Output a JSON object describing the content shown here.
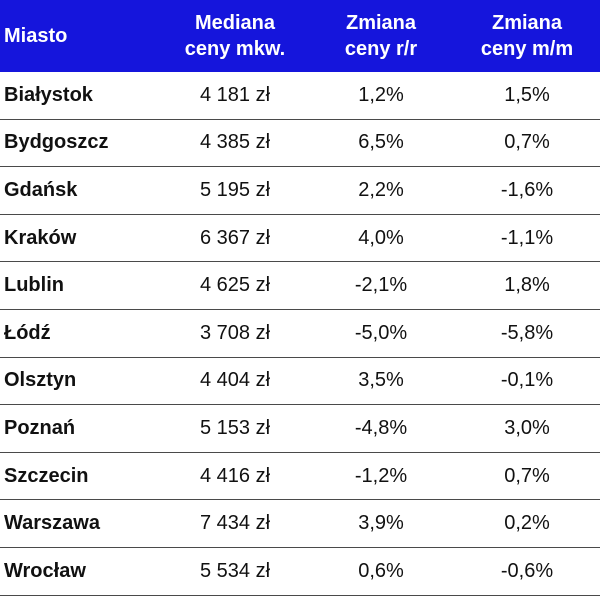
{
  "colors": {
    "header_background": "#1515dc",
    "header_text": "#ffffff",
    "row_divider": "#4a4a4a",
    "body_text": "#111111"
  },
  "chart_data": {
    "type": "table",
    "columns": [
      {
        "line1": "Miasto",
        "line2": ""
      },
      {
        "line1": "Mediana",
        "line2": "ceny mkw."
      },
      {
        "line1": "Zmiana",
        "line2": "ceny r/r"
      },
      {
        "line1": "Zmiana",
        "line2": "ceny m/m"
      }
    ],
    "rows": [
      {
        "city": "Białystok",
        "median": "4 181 zł",
        "yoy": "1,2%",
        "mom": "1,5%"
      },
      {
        "city": "Bydgoszcz",
        "median": "4 385 zł",
        "yoy": "6,5%",
        "mom": "0,7%"
      },
      {
        "city": "Gdańsk",
        "median": "5 195 zł",
        "yoy": "2,2%",
        "mom": "-1,6%"
      },
      {
        "city": "Kraków",
        "median": "6 367 zł",
        "yoy": "4,0%",
        "mom": "-1,1%"
      },
      {
        "city": "Lublin",
        "median": "4 625 zł",
        "yoy": "-2,1%",
        "mom": "1,8%"
      },
      {
        "city": "Łódź",
        "median": "3 708 zł",
        "yoy": "-5,0%",
        "mom": "-5,8%"
      },
      {
        "city": "Olsztyn",
        "median": "4 404 zł",
        "yoy": "3,5%",
        "mom": "-0,1%"
      },
      {
        "city": "Poznań",
        "median": "5 153 zł",
        "yoy": "-4,8%",
        "mom": "3,0%"
      },
      {
        "city": "Szczecin",
        "median": "4 416 zł",
        "yoy": "-1,2%",
        "mom": "0,7%"
      },
      {
        "city": "Warszawa",
        "median": "7 434 zł",
        "yoy": "3,9%",
        "mom": "0,2%"
      },
      {
        "city": "Wrocław",
        "median": "5 534 zł",
        "yoy": "0,6%",
        "mom": "-0,6%"
      }
    ]
  }
}
